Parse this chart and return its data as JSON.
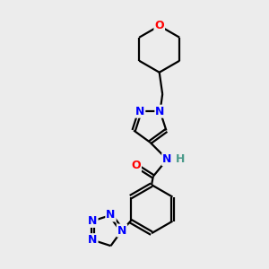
{
  "bg_color": "#ececec",
  "atom_colors": {
    "C": "#000000",
    "N": "#0000ff",
    "O": "#ff0000",
    "H": "#4a9a8a"
  },
  "bond_color": "#000000",
  "bond_width": 1.6,
  "dbo": 0.055,
  "figsize": [
    3.0,
    3.0
  ],
  "dpi": 100
}
